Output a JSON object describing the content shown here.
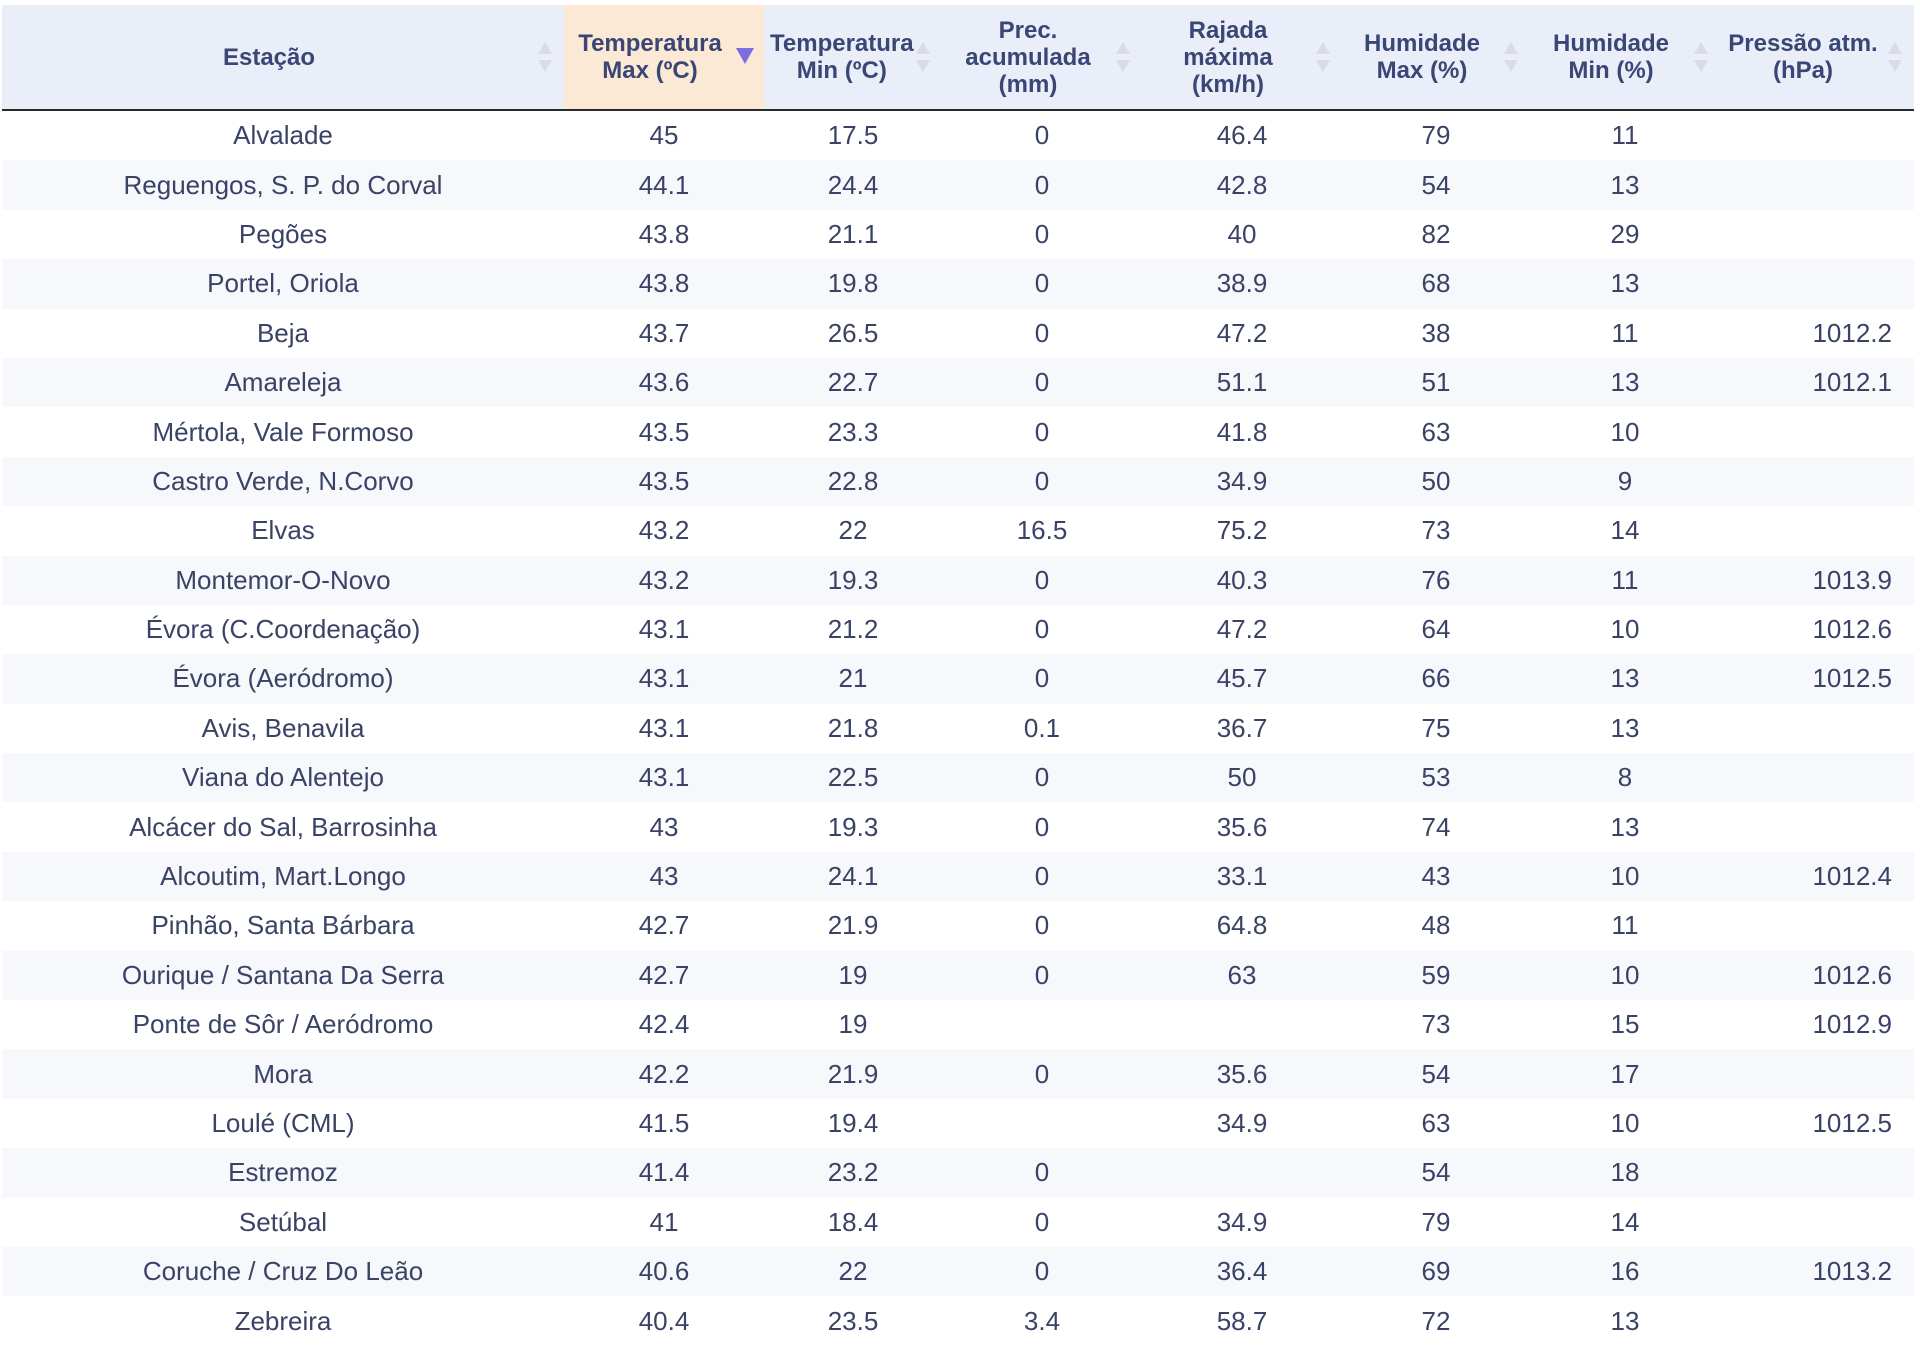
{
  "table": {
    "columns": [
      {
        "key": "station",
        "label": "Estação",
        "sorted": false
      },
      {
        "key": "tmax",
        "label": "Temperatura Max (ºC)",
        "sorted": true,
        "direction": "desc"
      },
      {
        "key": "tmin",
        "label": "Temperatura Min (ºC)",
        "sorted": false
      },
      {
        "key": "prec",
        "label": "Prec. acumulada (mm)",
        "sorted": false
      },
      {
        "key": "wind",
        "label": "Rajada máxima (km/h)",
        "sorted": false
      },
      {
        "key": "hmax",
        "label": "Humidade Max (%)",
        "sorted": false
      },
      {
        "key": "hmin",
        "label": "Humidade Min (%)",
        "sorted": false
      },
      {
        "key": "press",
        "label": "Pressão atm. (hPa)",
        "sorted": false
      }
    ],
    "rows": [
      {
        "station": "Alvalade",
        "tmax": "45",
        "tmin": "17.5",
        "prec": "0",
        "wind": "46.4",
        "hmax": "79",
        "hmin": "11",
        "press": ""
      },
      {
        "station": "Reguengos, S. P. do Corval",
        "tmax": "44.1",
        "tmin": "24.4",
        "prec": "0",
        "wind": "42.8",
        "hmax": "54",
        "hmin": "13",
        "press": ""
      },
      {
        "station": "Pegões",
        "tmax": "43.8",
        "tmin": "21.1",
        "prec": "0",
        "wind": "40",
        "hmax": "82",
        "hmin": "29",
        "press": ""
      },
      {
        "station": "Portel, Oriola",
        "tmax": "43.8",
        "tmin": "19.8",
        "prec": "0",
        "wind": "38.9",
        "hmax": "68",
        "hmin": "13",
        "press": ""
      },
      {
        "station": "Beja",
        "tmax": "43.7",
        "tmin": "26.5",
        "prec": "0",
        "wind": "47.2",
        "hmax": "38",
        "hmin": "11",
        "press": "1012.2"
      },
      {
        "station": "Amareleja",
        "tmax": "43.6",
        "tmin": "22.7",
        "prec": "0",
        "wind": "51.1",
        "hmax": "51",
        "hmin": "13",
        "press": "1012.1"
      },
      {
        "station": "Mértola, Vale Formoso",
        "tmax": "43.5",
        "tmin": "23.3",
        "prec": "0",
        "wind": "41.8",
        "hmax": "63",
        "hmin": "10",
        "press": ""
      },
      {
        "station": "Castro Verde, N.Corvo",
        "tmax": "43.5",
        "tmin": "22.8",
        "prec": "0",
        "wind": "34.9",
        "hmax": "50",
        "hmin": "9",
        "press": ""
      },
      {
        "station": "Elvas",
        "tmax": "43.2",
        "tmin": "22",
        "prec": "16.5",
        "wind": "75.2",
        "hmax": "73",
        "hmin": "14",
        "press": ""
      },
      {
        "station": "Montemor-O-Novo",
        "tmax": "43.2",
        "tmin": "19.3",
        "prec": "0",
        "wind": "40.3",
        "hmax": "76",
        "hmin": "11",
        "press": "1013.9"
      },
      {
        "station": "Évora (C.Coordenação)",
        "tmax": "43.1",
        "tmin": "21.2",
        "prec": "0",
        "wind": "47.2",
        "hmax": "64",
        "hmin": "10",
        "press": "1012.6"
      },
      {
        "station": "Évora (Aeródromo)",
        "tmax": "43.1",
        "tmin": "21",
        "prec": "0",
        "wind": "45.7",
        "hmax": "66",
        "hmin": "13",
        "press": "1012.5"
      },
      {
        "station": "Avis, Benavila",
        "tmax": "43.1",
        "tmin": "21.8",
        "prec": "0.1",
        "wind": "36.7",
        "hmax": "75",
        "hmin": "13",
        "press": ""
      },
      {
        "station": "Viana do Alentejo",
        "tmax": "43.1",
        "tmin": "22.5",
        "prec": "0",
        "wind": "50",
        "hmax": "53",
        "hmin": "8",
        "press": ""
      },
      {
        "station": "Alcácer do Sal, Barrosinha",
        "tmax": "43",
        "tmin": "19.3",
        "prec": "0",
        "wind": "35.6",
        "hmax": "74",
        "hmin": "13",
        "press": ""
      },
      {
        "station": "Alcoutim, Mart.Longo",
        "tmax": "43",
        "tmin": "24.1",
        "prec": "0",
        "wind": "33.1",
        "hmax": "43",
        "hmin": "10",
        "press": "1012.4"
      },
      {
        "station": "Pinhão, Santa Bárbara",
        "tmax": "42.7",
        "tmin": "21.9",
        "prec": "0",
        "wind": "64.8",
        "hmax": "48",
        "hmin": "11",
        "press": ""
      },
      {
        "station": "Ourique / Santana Da Serra",
        "tmax": "42.7",
        "tmin": "19",
        "prec": "0",
        "wind": "63",
        "hmax": "59",
        "hmin": "10",
        "press": "1012.6"
      },
      {
        "station": "Ponte de Sôr / Aeródromo",
        "tmax": "42.4",
        "tmin": "19",
        "prec": "",
        "wind": "",
        "hmax": "73",
        "hmin": "15",
        "press": "1012.9"
      },
      {
        "station": "Mora",
        "tmax": "42.2",
        "tmin": "21.9",
        "prec": "0",
        "wind": "35.6",
        "hmax": "54",
        "hmin": "17",
        "press": ""
      },
      {
        "station": "Loulé (CML)",
        "tmax": "41.5",
        "tmin": "19.4",
        "prec": "",
        "wind": "34.9",
        "hmax": "63",
        "hmin": "10",
        "press": "1012.5"
      },
      {
        "station": "Estremoz",
        "tmax": "41.4",
        "tmin": "23.2",
        "prec": "0",
        "wind": "",
        "hmax": "54",
        "hmin": "18",
        "press": ""
      },
      {
        "station": "Setúbal",
        "tmax": "41",
        "tmin": "18.4",
        "prec": "0",
        "wind": "34.9",
        "hmax": "79",
        "hmin": "14",
        "press": ""
      },
      {
        "station": "Coruche / Cruz Do Leão",
        "tmax": "40.6",
        "tmin": "22",
        "prec": "0",
        "wind": "36.4",
        "hmax": "69",
        "hmin": "16",
        "press": "1013.2"
      },
      {
        "station": "Zebreira",
        "tmax": "40.4",
        "tmin": "23.5",
        "prec": "3.4",
        "wind": "58.7",
        "hmax": "72",
        "hmin": "13",
        "press": ""
      }
    ]
  }
}
